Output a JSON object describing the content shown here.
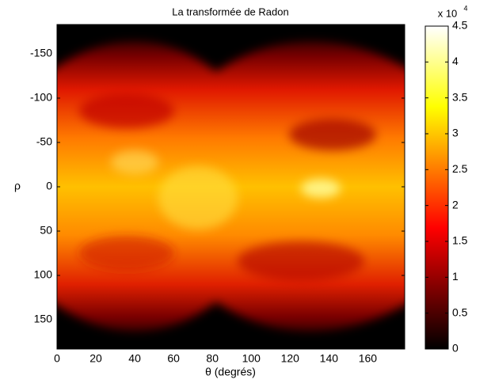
{
  "chart_data": {
    "type": "heatmap",
    "title": "La transformée de Radon",
    "x_label": "θ (degrés)",
    "y_label": "ρ",
    "xlim": [
      0,
      179
    ],
    "xticks": [
      0,
      20,
      40,
      60,
      80,
      100,
      120,
      140,
      160
    ],
    "ylim": [
      -183,
      183
    ],
    "y_reversed": true,
    "yticks": [
      -150,
      -100,
      -50,
      0,
      50,
      100,
      150
    ],
    "colormap": "hot",
    "clim": [
      0,
      4.5
    ],
    "cticks": [
      0,
      0.5,
      1,
      1.5,
      2,
      2.5,
      3,
      3.5,
      4,
      4.5
    ],
    "colorbar_multiplier_text": "x 10",
    "colorbar_multiplier_exponent": "4"
  }
}
